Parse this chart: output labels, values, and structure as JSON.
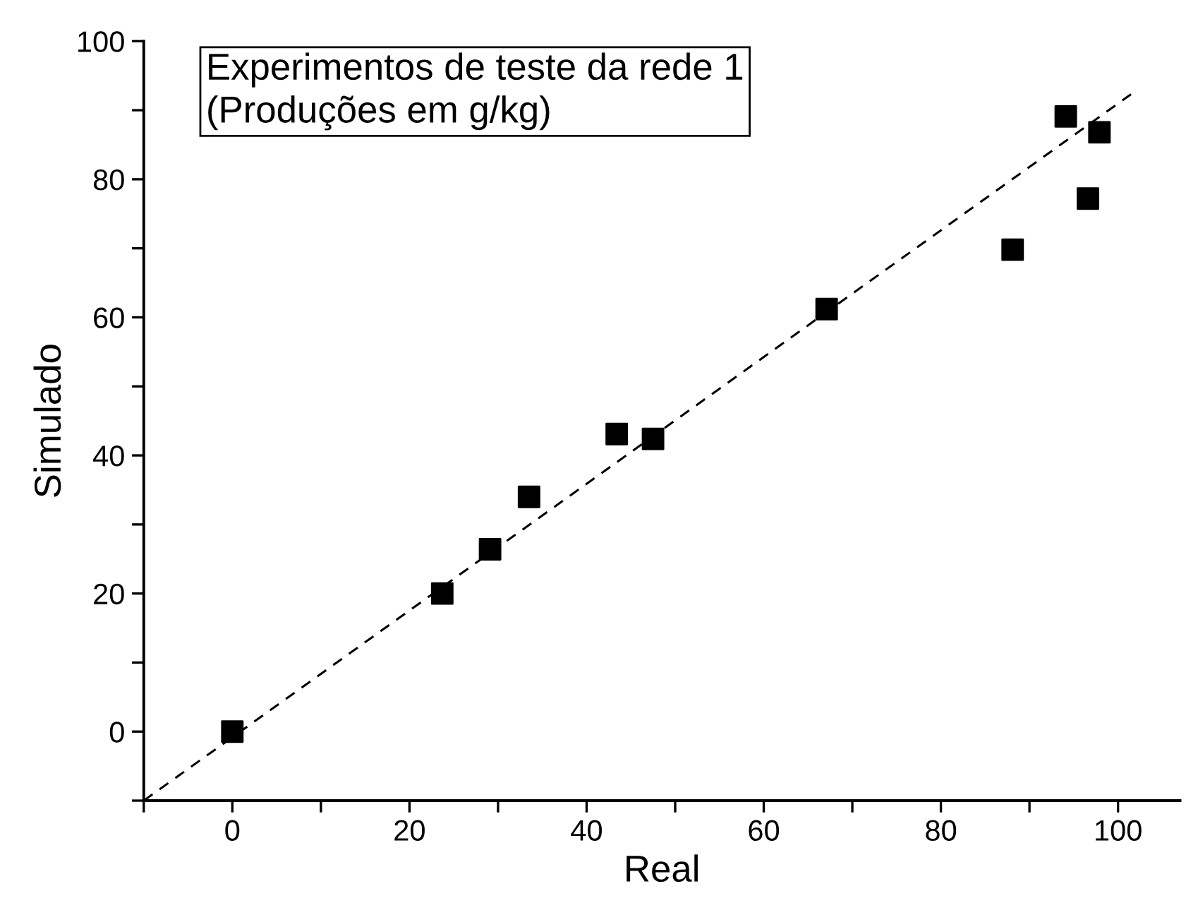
{
  "chart_data": {
    "type": "scatter",
    "xlabel": "Real",
    "ylabel": "Simulado",
    "annotations": [
      "Experimentos de teste da rede 1\n(Produções em g/kg)"
    ],
    "xlim": [
      -10,
      107
    ],
    "ylim": [
      -10,
      100
    ],
    "xticks": [
      {
        "value": -10,
        "label": null
      },
      0,
      {
        "value": 10,
        "label": null
      },
      20,
      {
        "value": 30,
        "label": null
      },
      40,
      {
        "value": 50,
        "label": null
      },
      60,
      {
        "value": 70,
        "label": null
      },
      80,
      {
        "value": 90,
        "label": null
      },
      100
    ],
    "yticks": [
      {
        "value": -10,
        "label": null
      },
      0,
      {
        "value": 10,
        "label": null
      },
      20,
      {
        "value": 30,
        "label": null
      },
      40,
      {
        "value": 50,
        "label": null
      },
      60,
      {
        "value": 70,
        "label": null
      },
      80,
      {
        "value": 90,
        "label": null
      },
      100
    ],
    "marker": "square",
    "grid": false,
    "legend": false,
    "series": [
      {
        "color": "#000000",
        "x": [
          0,
          23.7,
          29.1,
          33.5,
          43.4,
          47.5,
          67.1,
          88.1,
          94.1,
          97.9,
          96.6
        ],
        "values": [
          0,
          20.0,
          26.4,
          34.0,
          43.1,
          42.4,
          61.2,
          69.8,
          89.1,
          86.8,
          77.2
        ]
      },
      {
        "type": "line",
        "color": "#000000",
        "line_style": "dashed",
        "marker": "none",
        "x": [
          -10,
          102
        ],
        "values": [
          -10,
          92.8
        ]
      }
    ]
  }
}
